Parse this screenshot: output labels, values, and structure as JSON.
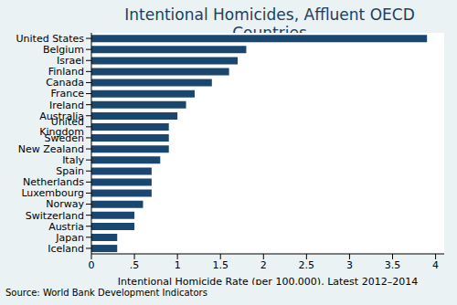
{
  "chart_data": {
    "type": "bar",
    "title": "Intentional Homicides, Affluent OECD Countries",
    "orientation": "horizontal",
    "categories": [
      "United States",
      "Belgium",
      "Israel",
      "Finland",
      "Canada",
      "France",
      "Ireland",
      "Australia",
      "United Kingdom",
      "Sweden",
      "New Zealand",
      "Italy",
      "Spain",
      "Netherlands",
      "Luxembourg",
      "Norway",
      "Switzerland",
      "Austria",
      "Japan",
      "Iceland"
    ],
    "values": [
      3.9,
      1.8,
      1.7,
      1.6,
      1.4,
      1.2,
      1.1,
      1.0,
      0.9,
      0.9,
      0.9,
      0.8,
      0.7,
      0.7,
      0.7,
      0.6,
      0.5,
      0.5,
      0.3,
      0.3
    ],
    "color": "#1a476f",
    "x_label": "Intentional Homicide Rate (per 100,000), Latest 2012–2014",
    "xlim": [
      0,
      4.1
    ],
    "xticks": [
      0,
      {
        "value": 0.5,
        "label": ".5"
      },
      1,
      1.5,
      2,
      2.5,
      3,
      3.5,
      4
    ],
    "grid": false,
    "source": "Source: World Bank Development Indicators"
  }
}
